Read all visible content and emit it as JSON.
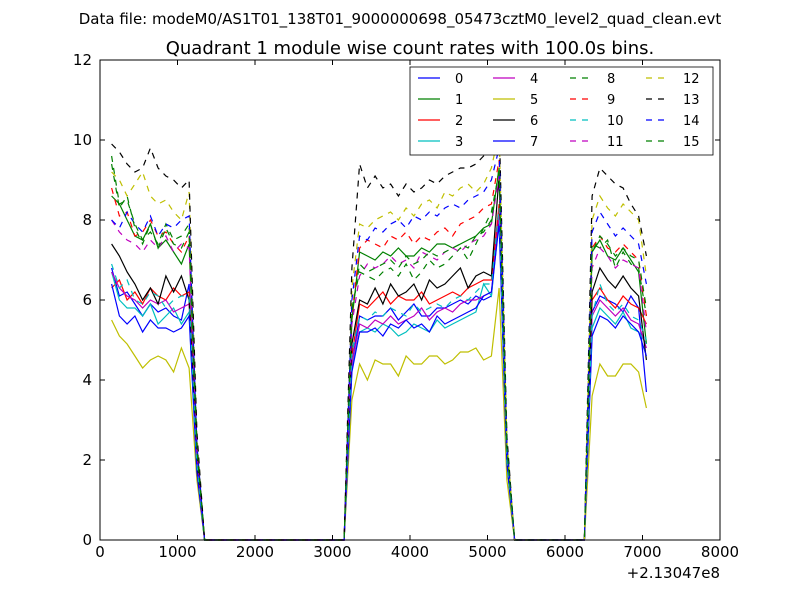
{
  "figure": {
    "suptitle": "Data file: modeM0/AS1T01_138T01_9000000698_05473cztM0_level2_quad_clean.evt",
    "title": "Quadrant 1 module wise count rates with 100.0s bins.",
    "x_offset_label": "+2.13047e8"
  },
  "colors": {
    "0": "#0000ff",
    "1": "#008000",
    "2": "#ff0000",
    "3": "#00bfbf",
    "4": "#bf00bf",
    "5": "#bfbf00",
    "6": "#000000",
    "7": "#0000ff",
    "8": "#008000",
    "9": "#ff0000",
    "10": "#00bfbf",
    "11": "#bf00bf",
    "12": "#bfbf00",
    "13": "#000000",
    "14": "#0000ff",
    "15": "#008000"
  },
  "chart_data": {
    "type": "line",
    "title": "Quadrant 1 module wise count rates with 100.0s bins.",
    "xlabel": "",
    "ylabel": "",
    "x_offset": 213047000,
    "xlim": [
      0,
      8000
    ],
    "ylim": [
      0,
      12
    ],
    "xticks": [
      0,
      1000,
      2000,
      3000,
      4000,
      5000,
      6000,
      7000,
      8000
    ],
    "yticks": [
      0,
      2,
      4,
      6,
      8,
      10,
      12
    ],
    "grid": false,
    "legend": {
      "placement": "top-right",
      "columns": 4
    },
    "x": [
      150,
      250,
      350,
      450,
      550,
      650,
      750,
      850,
      950,
      1050,
      1150,
      1250,
      1350,
      1450,
      2950,
      3050,
      3150,
      3250,
      3350,
      3450,
      3550,
      3650,
      3750,
      3850,
      3950,
      4050,
      4150,
      4250,
      4350,
      4450,
      4550,
      4650,
      4750,
      4850,
      4950,
      5050,
      5150,
      5250,
      5350,
      5450,
      6150,
      6250,
      6350,
      6450,
      6550,
      6650,
      6750,
      6850,
      6950,
      7050
    ],
    "series": [
      {
        "name": "0",
        "style": "solid",
        "values": [
          6.8,
          6.1,
          6.2,
          5.9,
          5.6,
          5.9,
          5.7,
          5.8,
          5.6,
          5.5,
          6.4,
          1.8,
          0,
          0,
          0,
          0,
          0,
          4.4,
          5.6,
          5.5,
          5.6,
          5.6,
          5.8,
          5.5,
          5.7,
          5.9,
          5.6,
          5.6,
          5.8,
          5.8,
          5.9,
          6.0,
          5.9,
          6.1,
          6.0,
          6.1,
          8.2,
          2.0,
          0,
          0,
          0,
          0,
          5.7,
          6.1,
          6.0,
          5.9,
          5.7,
          6.1,
          5.8,
          3.7
        ]
      },
      {
        "name": "1",
        "style": "solid",
        "values": [
          8.6,
          8.4,
          8.0,
          7.6,
          7.5,
          7.9,
          7.3,
          7.5,
          7.2,
          6.9,
          7.4,
          2.2,
          0,
          0,
          0,
          0,
          0,
          5.5,
          7.2,
          7.1,
          7.0,
          7.2,
          7.1,
          7.3,
          7.1,
          7.1,
          7.3,
          7.2,
          7.4,
          7.4,
          7.3,
          7.4,
          7.5,
          7.6,
          7.8,
          7.9,
          9.3,
          2.4,
          0,
          0,
          0,
          0,
          7.2,
          7.5,
          7.1,
          7.0,
          7.3,
          7.0,
          6.7,
          4.9
        ]
      },
      {
        "name": "2",
        "style": "solid",
        "values": [
          6.3,
          6.5,
          6.0,
          6.2,
          5.9,
          6.3,
          6.1,
          6.0,
          6.3,
          6.1,
          6.2,
          1.9,
          0,
          0,
          0,
          0,
          0,
          4.6,
          5.9,
          5.8,
          6.0,
          6.2,
          5.9,
          6.1,
          6.0,
          6.0,
          6.2,
          5.9,
          6.0,
          6.1,
          6.2,
          6.1,
          6.3,
          6.4,
          6.5,
          6.5,
          8.4,
          2.1,
          0,
          0,
          0,
          0,
          6.0,
          6.3,
          6.0,
          5.8,
          6.1,
          5.9,
          5.8,
          5.4
        ]
      },
      {
        "name": "3",
        "style": "solid",
        "values": [
          6.7,
          6.0,
          5.8,
          5.8,
          5.6,
          5.9,
          5.4,
          5.6,
          5.8,
          5.4,
          5.7,
          1.7,
          0,
          0,
          0,
          0,
          0,
          4.3,
          5.2,
          5.3,
          5.2,
          5.4,
          5.3,
          5.1,
          5.2,
          5.4,
          5.3,
          5.2,
          5.5,
          5.3,
          5.4,
          5.5,
          5.6,
          5.7,
          6.4,
          6.1,
          8.0,
          1.9,
          0,
          0,
          0,
          0,
          5.3,
          5.8,
          5.6,
          5.4,
          5.7,
          5.3,
          5.2,
          4.9
        ]
      },
      {
        "name": "4",
        "style": "solid",
        "values": [
          6.7,
          6.3,
          6.1,
          6.0,
          5.8,
          6.0,
          5.9,
          6.0,
          5.7,
          5.8,
          5.9,
          1.8,
          0,
          0,
          0,
          0,
          0,
          4.4,
          5.4,
          5.3,
          5.5,
          5.4,
          5.6,
          5.4,
          5.5,
          5.6,
          5.8,
          5.5,
          5.7,
          5.8,
          5.7,
          5.9,
          6.0,
          6.0,
          6.1,
          6.2,
          8.1,
          2.0,
          0,
          0,
          0,
          0,
          5.6,
          6.0,
          5.8,
          5.6,
          5.8,
          5.5,
          5.4,
          4.8
        ]
      },
      {
        "name": "5",
        "style": "solid",
        "values": [
          5.5,
          5.1,
          4.9,
          4.6,
          4.3,
          4.5,
          4.6,
          4.5,
          4.2,
          4.8,
          4.3,
          1.5,
          0,
          0,
          0,
          0,
          0,
          3.5,
          4.4,
          4.0,
          4.5,
          4.4,
          4.4,
          4.1,
          4.6,
          4.4,
          4.4,
          4.6,
          4.6,
          4.4,
          4.5,
          4.7,
          4.7,
          4.8,
          4.5,
          4.6,
          6.3,
          1.5,
          0,
          0,
          0,
          0,
          3.6,
          4.4,
          4.1,
          4.1,
          4.4,
          4.4,
          4.2,
          3.3
        ]
      },
      {
        "name": "6",
        "style": "solid",
        "values": [
          7.4,
          7.1,
          6.7,
          6.4,
          6.0,
          6.3,
          5.9,
          6.6,
          6.2,
          6.6,
          6.0,
          2.0,
          0,
          0,
          0,
          0,
          0,
          4.9,
          6.0,
          5.9,
          6.3,
          5.9,
          6.4,
          6.1,
          6.2,
          6.4,
          6.0,
          6.5,
          6.3,
          6.4,
          6.6,
          6.8,
          6.3,
          6.6,
          6.7,
          6.6,
          9.1,
          2.2,
          0,
          0,
          0,
          0,
          6.2,
          6.8,
          6.5,
          6.3,
          6.6,
          6.3,
          6.1,
          4.5
        ]
      },
      {
        "name": "7",
        "style": "solid",
        "values": [
          6.4,
          5.6,
          5.4,
          5.6,
          5.2,
          5.5,
          5.3,
          5.3,
          5.2,
          5.3,
          5.6,
          1.7,
          0,
          0,
          0,
          0,
          0,
          4.2,
          5.2,
          5.2,
          5.3,
          5.1,
          5.4,
          5.3,
          5.5,
          5.3,
          5.4,
          5.2,
          5.6,
          5.4,
          5.5,
          5.6,
          5.7,
          5.8,
          6.1,
          6.2,
          7.9,
          1.9,
          0,
          0,
          0,
          0,
          5.1,
          5.6,
          5.5,
          5.3,
          5.6,
          5.4,
          5.2,
          4.6
        ]
      },
      {
        "name": "8",
        "style": "dashed",
        "values": [
          9.6,
          8.4,
          8.5,
          7.9,
          7.5,
          7.7,
          7.4,
          7.9,
          7.5,
          7.6,
          7.9,
          2.4,
          0,
          0,
          0,
          0,
          0,
          5.8,
          6.7,
          6.6,
          6.5,
          6.7,
          6.8,
          6.6,
          6.9,
          6.5,
          6.7,
          7.0,
          6.8,
          6.9,
          7.1,
          7.3,
          7.0,
          7.4,
          7.8,
          8.2,
          9.2,
          2.3,
          0,
          0,
          0,
          0,
          7.4,
          7.3,
          7.5,
          6.8,
          7.2,
          6.9,
          6.8,
          5.6
        ]
      },
      {
        "name": "9",
        "style": "dashed",
        "values": [
          8.8,
          8.1,
          8.2,
          7.6,
          7.7,
          8.0,
          7.6,
          7.7,
          7.4,
          7.2,
          7.6,
          2.3,
          0,
          0,
          0,
          0,
          0,
          5.6,
          7.3,
          7.5,
          7.4,
          7.3,
          7.6,
          7.5,
          7.7,
          7.4,
          7.6,
          7.5,
          7.7,
          7.8,
          7.6,
          7.9,
          8.0,
          8.1,
          8.3,
          8.4,
          9.5,
          2.4,
          0,
          0,
          0,
          0,
          7.3,
          7.6,
          7.3,
          7.2,
          7.4,
          7.2,
          7.0,
          5.6
        ]
      },
      {
        "name": "10",
        "style": "dashed",
        "values": [
          6.9,
          6.3,
          6.5,
          6.0,
          5.9,
          6.2,
          6.1,
          5.8,
          6.0,
          6.1,
          6.1,
          1.9,
          0,
          0,
          0,
          0,
          0,
          4.7,
          5.6,
          5.5,
          5.7,
          5.6,
          5.8,
          5.7,
          5.6,
          5.9,
          5.7,
          5.8,
          5.9,
          5.8,
          6.0,
          6.1,
          6.0,
          6.2,
          6.4,
          6.4,
          8.3,
          2.0,
          0,
          0,
          0,
          0,
          5.6,
          6.4,
          5.9,
          5.7,
          5.9,
          5.6,
          5.5,
          5.0
        ]
      },
      {
        "name": "11",
        "style": "dashed",
        "values": [
          8.0,
          7.7,
          7.5,
          7.4,
          7.2,
          7.5,
          7.3,
          7.6,
          7.2,
          7.4,
          7.3,
          2.2,
          0,
          0,
          0,
          0,
          0,
          5.4,
          6.6,
          6.9,
          6.8,
          6.9,
          7.1,
          6.9,
          7.0,
          6.8,
          7.2,
          7.1,
          7.0,
          7.2,
          7.3,
          7.2,
          7.4,
          7.5,
          7.6,
          7.9,
          9.1,
          2.3,
          0,
          0,
          0,
          0,
          6.8,
          7.3,
          7.1,
          6.8,
          7.0,
          6.9,
          6.8,
          5.2
        ]
      },
      {
        "name": "12",
        "style": "dashed",
        "values": [
          9.2,
          9.0,
          8.6,
          8.9,
          9.2,
          8.6,
          8.4,
          8.5,
          8.2,
          8.0,
          8.7,
          2.6,
          0,
          0,
          0,
          0,
          0,
          6.3,
          7.9,
          7.8,
          8.0,
          8.1,
          8.2,
          8.0,
          8.3,
          8.1,
          8.4,
          8.5,
          8.3,
          8.7,
          8.6,
          8.8,
          8.9,
          8.7,
          8.9,
          9.3,
          10.2,
          2.5,
          0,
          0,
          0,
          0,
          8.0,
          8.6,
          8.3,
          8.1,
          8.4,
          8.2,
          8.0,
          6.6
        ]
      },
      {
        "name": "13",
        "style": "dashed",
        "values": [
          9.9,
          9.7,
          9.4,
          9.2,
          9.3,
          9.8,
          9.3,
          9.1,
          9.0,
          8.8,
          9.0,
          2.7,
          0,
          0,
          0,
          0,
          0,
          6.8,
          9.4,
          8.8,
          9.1,
          8.8,
          8.9,
          8.6,
          8.9,
          8.7,
          8.8,
          9.0,
          8.9,
          9.1,
          9.2,
          9.3,
          9.3,
          9.4,
          9.6,
          10.3,
          10.5,
          2.6,
          0,
          0,
          0,
          0,
          8.6,
          9.3,
          9.1,
          8.9,
          8.8,
          8.4,
          8.1,
          7.1
        ]
      },
      {
        "name": "14",
        "style": "dashed",
        "values": [
          8.0,
          7.8,
          8.2,
          7.9,
          7.7,
          8.1,
          7.6,
          7.9,
          7.8,
          8.0,
          8.1,
          2.4,
          0,
          0,
          0,
          0,
          0,
          6.0,
          7.6,
          7.5,
          7.8,
          7.7,
          7.9,
          8.0,
          7.8,
          8.1,
          8.0,
          8.2,
          8.1,
          8.3,
          8.4,
          8.3,
          8.5,
          8.6,
          8.7,
          9.0,
          9.8,
          2.4,
          0,
          0,
          0,
          0,
          7.7,
          8.2,
          7.9,
          7.6,
          7.8,
          7.6,
          7.4,
          6.4
        ]
      },
      {
        "name": "15",
        "style": "dashed",
        "values": [
          9.4,
          8.3,
          8.6,
          7.8,
          7.4,
          7.9,
          7.3,
          7.8,
          7.4,
          7.3,
          7.7,
          2.3,
          0,
          0,
          0,
          0,
          0,
          5.7,
          6.9,
          6.7,
          6.8,
          6.9,
          7.0,
          6.8,
          7.1,
          6.9,
          7.0,
          7.2,
          7.1,
          7.2,
          7.3,
          7.4,
          7.3,
          7.6,
          7.7,
          8.0,
          9.3,
          2.3,
          0,
          0,
          0,
          0,
          7.2,
          7.6,
          7.4,
          7.1,
          7.3,
          7.1,
          7.0,
          5.8
        ]
      }
    ]
  }
}
